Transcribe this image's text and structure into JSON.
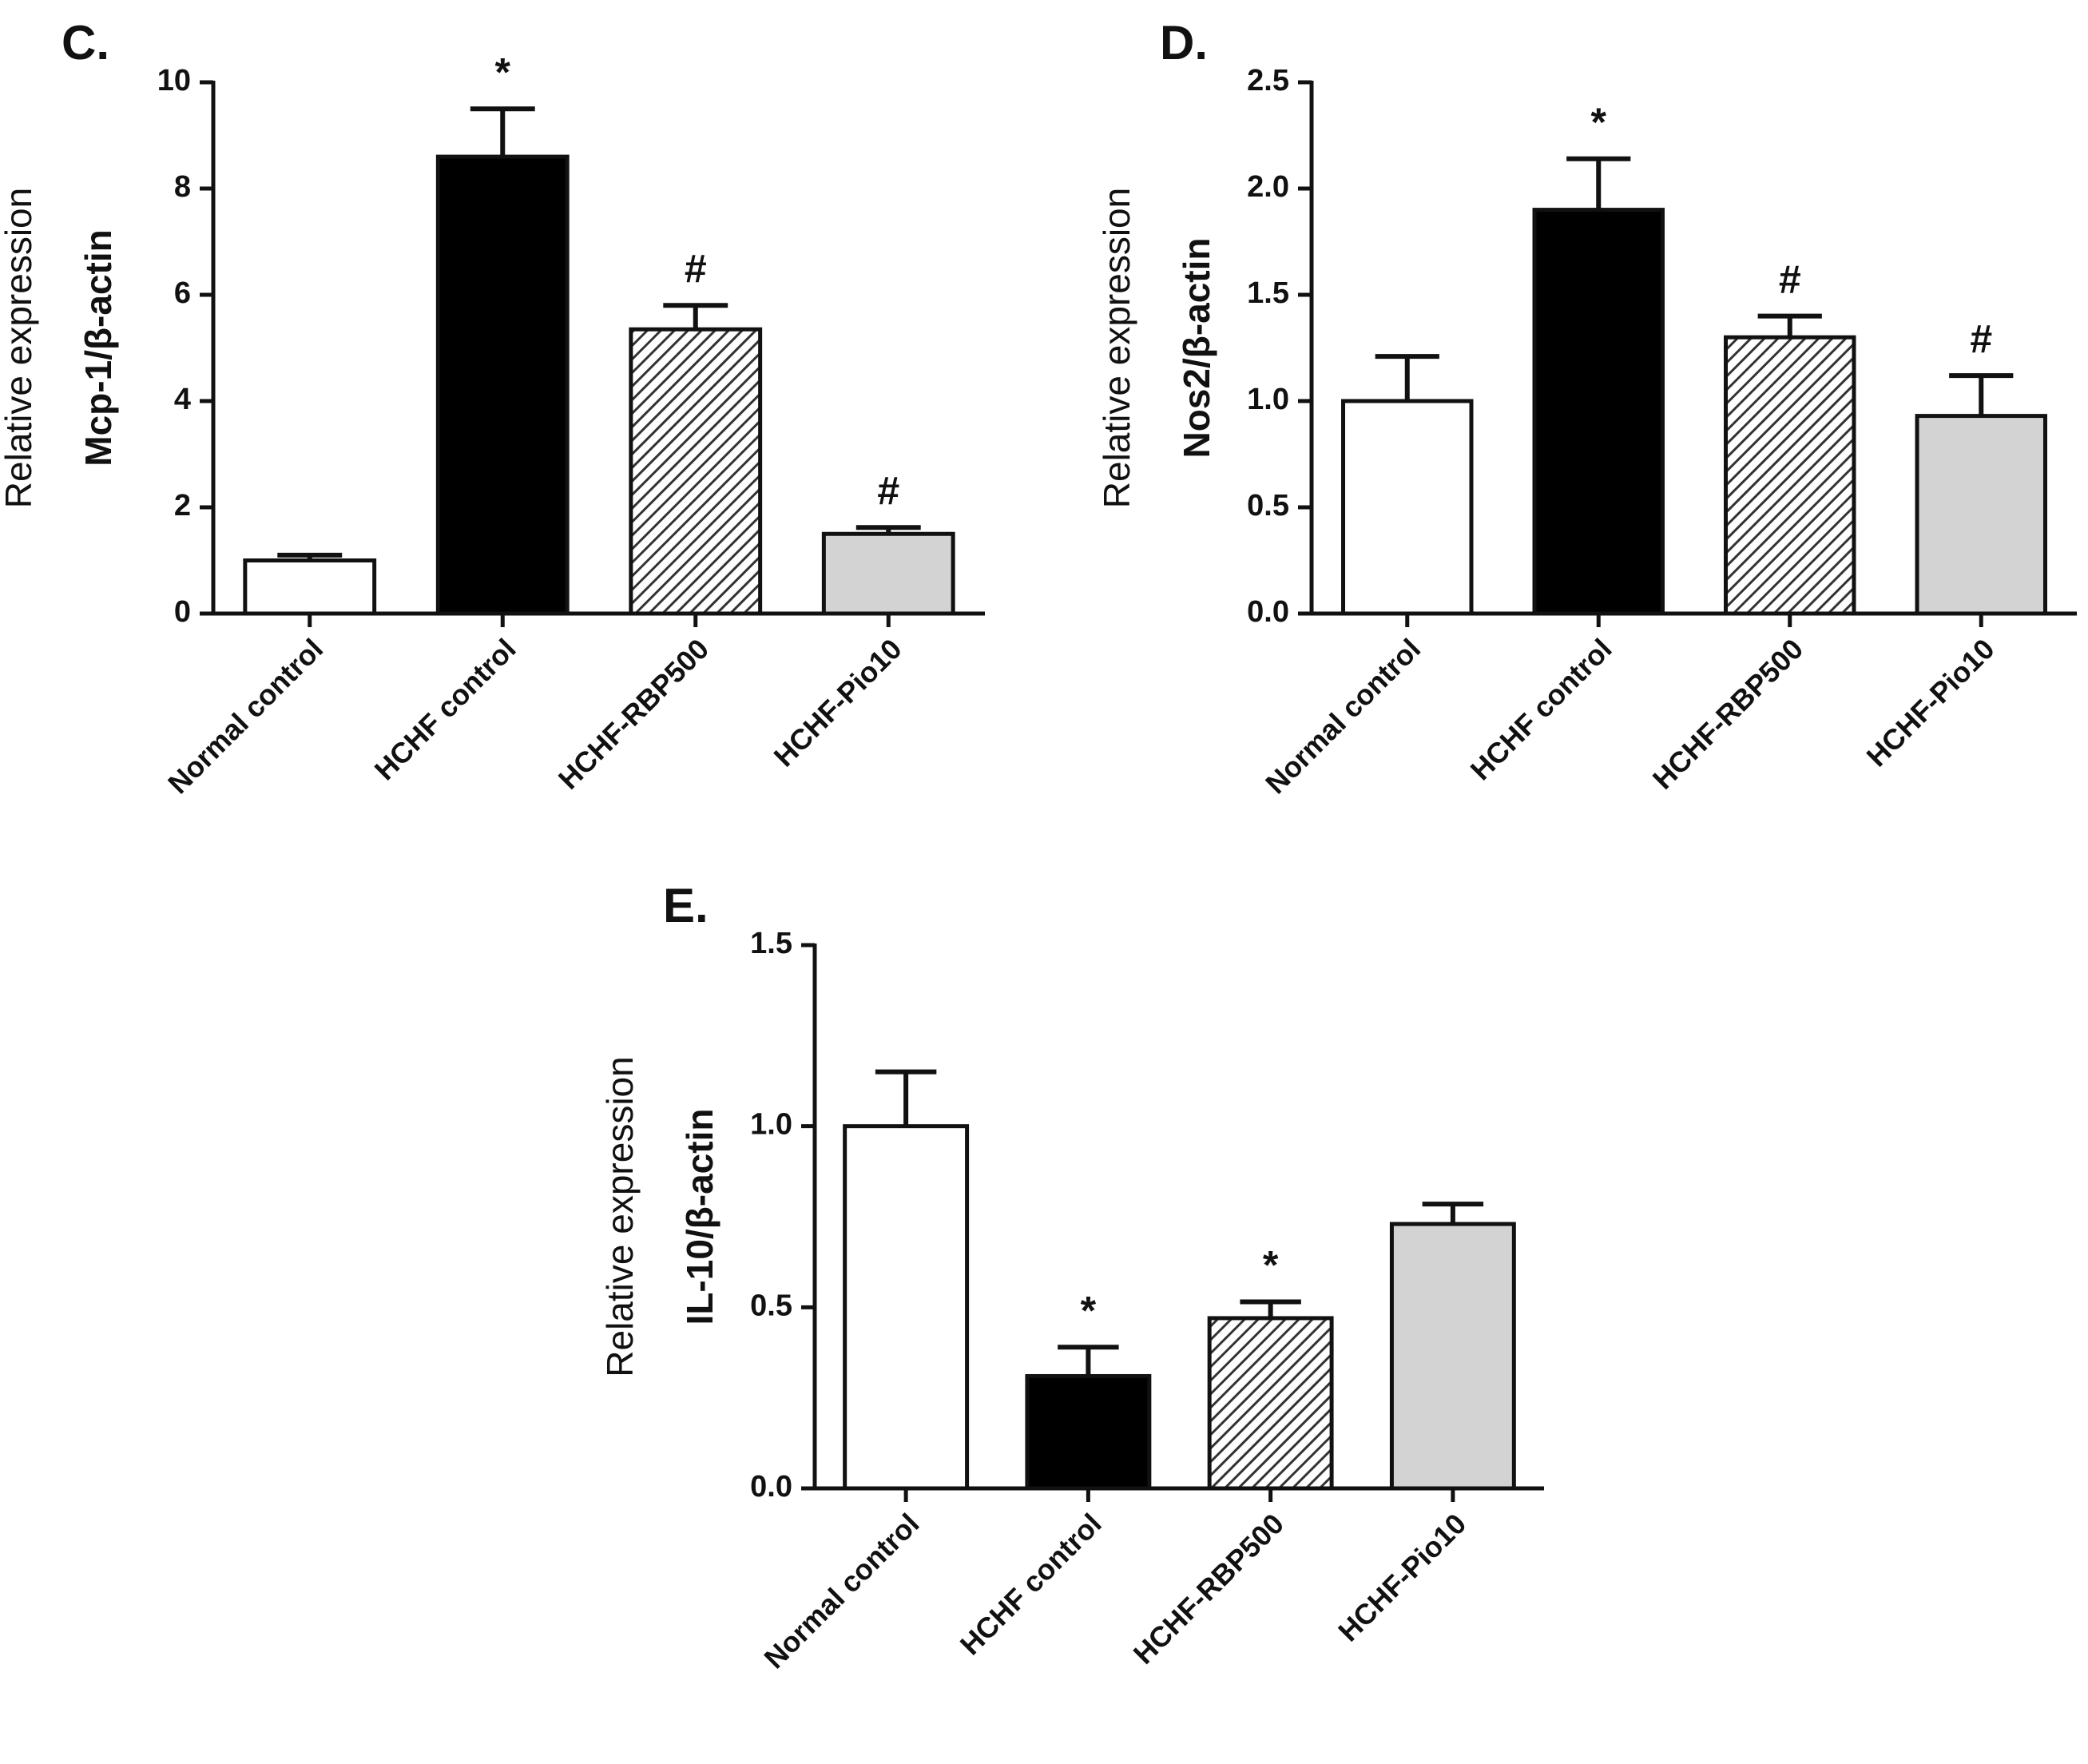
{
  "chart_data": [
    {
      "type": "bar",
      "title": "C.",
      "y_label": "Relative expression",
      "y_label_sub": "Mcp-1/β-actin",
      "categories": [
        "Normal control",
        "HCHF control",
        "HCHF-RBP500",
        "HCHF-Pio10"
      ],
      "values": [
        1.0,
        8.6,
        5.35,
        1.5
      ],
      "errors": [
        0.1,
        0.9,
        0.45,
        0.12
      ],
      "annotations": [
        null,
        "*",
        "#",
        "#"
      ],
      "colors": [
        "#ffffff",
        "#000000",
        "#ffffff",
        "#d3d3d3"
      ],
      "hatched": [
        false,
        false,
        true,
        false
      ],
      "ylim": [
        0,
        10
      ],
      "yticks": [
        0,
        2,
        4,
        6,
        8,
        10
      ]
    },
    {
      "type": "bar",
      "title": "D.",
      "y_label": "Relative expression",
      "y_label_sub": "Nos2/β-actin",
      "categories": [
        "Normal control",
        "HCHF control",
        "HCHF-RBP500",
        "HCHF-Pio10"
      ],
      "values": [
        1.0,
        1.9,
        1.3,
        0.93
      ],
      "errors": [
        0.21,
        0.24,
        0.1,
        0.19
      ],
      "annotations": [
        null,
        "*",
        "#",
        "#"
      ],
      "colors": [
        "#ffffff",
        "#000000",
        "#ffffff",
        "#d3d3d3"
      ],
      "hatched": [
        false,
        false,
        true,
        false
      ],
      "ylim": [
        0,
        2.5
      ],
      "yticks": [
        {
          "value": 0,
          "label": "0.0"
        },
        0.5,
        {
          "value": 1,
          "label": "1.0"
        },
        1.5,
        {
          "value": 2,
          "label": "2.0"
        },
        2.5
      ]
    },
    {
      "type": "bar",
      "title": "E.",
      "y_label": "Relative expression",
      "y_label_sub": "IL-10/β-actin",
      "categories": [
        "Normal control",
        "HCHF control",
        "HCHF-RBP500",
        "HCHF-Pio10"
      ],
      "values": [
        1.0,
        0.31,
        0.47,
        0.73
      ],
      "errors": [
        0.15,
        0.08,
        0.045,
        0.055
      ],
      "annotations": [
        null,
        "*",
        "*",
        null
      ],
      "colors": [
        "#ffffff",
        "#000000",
        "#ffffff",
        "#d3d3d3"
      ],
      "hatched": [
        false,
        false,
        true,
        false
      ],
      "ylim": [
        0,
        1.5
      ],
      "yticks": [
        {
          "value": 0,
          "label": "0.0"
        },
        0.5,
        {
          "value": 1,
          "label": "1.0"
        },
        1.5
      ]
    }
  ]
}
